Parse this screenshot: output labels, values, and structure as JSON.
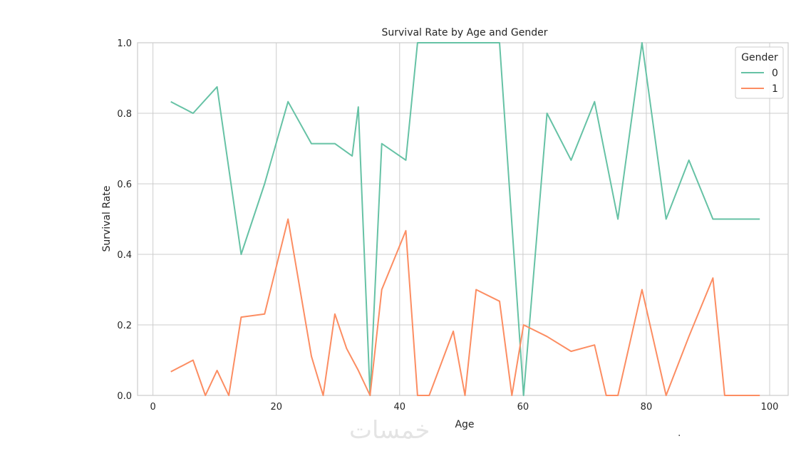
{
  "chart_data": {
    "type": "line",
    "title": "Survival Rate by Age and Gender",
    "xlabel": "Age",
    "ylabel": "Survival Rate",
    "xlim": [
      -2.5,
      103
    ],
    "ylim": [
      0,
      1
    ],
    "xticks": [
      0,
      20,
      40,
      60,
      80,
      100
    ],
    "yticks": [
      0.0,
      0.2,
      0.4,
      0.6,
      0.8,
      1.0
    ],
    "xtick_labels": [
      "0",
      "20",
      "40",
      "60",
      "80",
      "100"
    ],
    "ytick_labels": [
      "0.0",
      "0.2",
      "0.4",
      "0.6",
      "0.8",
      "1.0"
    ],
    "grid": true,
    "legend": {
      "title": "Gender",
      "position": "top-right"
    },
    "series": [
      {
        "name": "0",
        "color": "#66c2a5",
        "x": [
          2.9,
          6.5,
          10.4,
          14.3,
          18.1,
          21.9,
          25.7,
          29.5,
          32.3,
          33.3,
          35.2,
          37.1,
          41.0,
          42.9,
          46.7,
          50.6,
          52.4,
          56.2,
          60.1,
          63.9,
          67.8,
          71.6,
          75.4,
          79.3,
          83.2,
          86.9,
          90.8,
          94.6,
          98.4
        ],
        "y": [
          0.833,
          0.8,
          0.875,
          0.4,
          0.6,
          0.833,
          0.714,
          0.714,
          0.679,
          0.818,
          0.0,
          0.714,
          0.667,
          1.0,
          1.0,
          1.0,
          1.0,
          1.0,
          0.0,
          0.8,
          0.667,
          0.833,
          0.5,
          1.0,
          0.5,
          0.667,
          0.5,
          0.5,
          0.5
        ]
      },
      {
        "name": "1",
        "color": "#fc8d62",
        "x": [
          2.9,
          6.5,
          8.5,
          10.4,
          12.3,
          14.3,
          18.1,
          21.9,
          25.7,
          27.6,
          29.5,
          31.4,
          33.3,
          35.2,
          37.1,
          41.0,
          42.9,
          44.8,
          48.7,
          50.6,
          52.4,
          56.2,
          58.2,
          60.1,
          63.9,
          67.8,
          71.6,
          73.5,
          75.4,
          79.3,
          83.2,
          86.9,
          90.8,
          92.7,
          98.4
        ],
        "y": [
          0.067,
          0.1,
          0.0,
          0.071,
          0.0,
          0.222,
          0.231,
          0.5,
          0.111,
          0.0,
          0.231,
          0.133,
          0.071,
          0.0,
          0.3,
          0.467,
          0.0,
          0.0,
          0.182,
          0.0,
          0.3,
          0.267,
          0.0,
          0.2,
          0.167,
          0.125,
          0.143,
          0.0,
          0.0,
          0.3,
          0.0,
          0.167,
          0.333,
          0.0,
          0.0
        ]
      }
    ]
  },
  "watermark": "خمسات",
  "footer_mark": "."
}
